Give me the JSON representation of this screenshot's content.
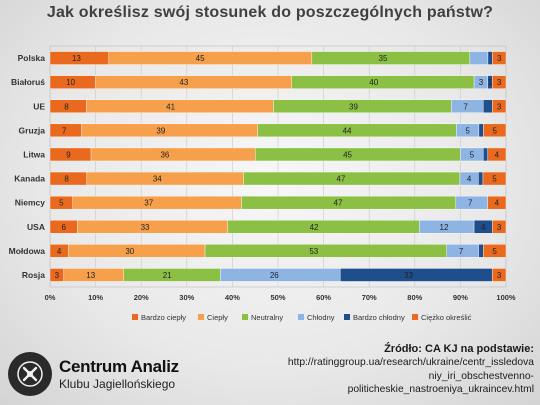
{
  "chart_data": {
    "type": "bar",
    "orientation": "horizontal",
    "stacked": "percent",
    "title": "Jak określisz swój stosunek do poszczególnych państw?",
    "categories": [
      "Polska",
      "Białoruś",
      "UE",
      "Gruzja",
      "Litwa",
      "Kanada",
      "Niemcy",
      "USA",
      "Mołdowa",
      "Rosja"
    ],
    "xticks": [
      "0%",
      "10%",
      "20%",
      "30%",
      "40%",
      "50%",
      "60%",
      "70%",
      "80%",
      "90%",
      "100%"
    ],
    "xlim": [
      0,
      100
    ],
    "legend_position": "bottom",
    "series": [
      {
        "name": "Bardzo ciepły",
        "color": "#e9691e",
        "values": [
          13,
          10,
          8,
          7,
          9,
          8,
          5,
          6,
          4,
          3
        ]
      },
      {
        "name": "Ciepły",
        "color": "#f7a04b",
        "values": [
          45,
          43,
          41,
          39,
          36,
          34,
          37,
          33,
          30,
          13
        ]
      },
      {
        "name": "Neutralny",
        "color": "#8cc044",
        "values": [
          35,
          40,
          39,
          44,
          45,
          47,
          47,
          42,
          53,
          21
        ]
      },
      {
        "name": "Chłodny",
        "color": "#8eb4e3",
        "values": [
          4,
          3,
          7,
          5,
          5,
          4,
          7,
          12,
          7,
          26
        ]
      },
      {
        "name": "Bardzo chłodny",
        "color": "#1f4e8c",
        "values": [
          1,
          1,
          2,
          1,
          1,
          1,
          0,
          4,
          1,
          33
        ]
      },
      {
        "name": "Ciężko określić",
        "color": "#e9691e",
        "values": [
          3,
          3,
          3,
          5,
          4,
          5,
          4,
          3,
          5,
          3
        ]
      }
    ],
    "data_labels": [
      [
        "13",
        "45",
        "35",
        "",
        "",
        "3"
      ],
      [
        "10",
        "43",
        "40",
        "3",
        "1",
        "3"
      ],
      [
        "8",
        "41",
        "39",
        "7",
        "",
        "3"
      ],
      [
        "7",
        "39",
        "44",
        "5",
        "",
        "5"
      ],
      [
        "9",
        "36",
        "45",
        "5",
        "",
        "4"
      ],
      [
        "8",
        "34",
        "47",
        "4",
        "",
        "5"
      ],
      [
        "5",
        "37",
        "47",
        "7",
        "",
        "4"
      ],
      [
        "6",
        "33",
        "42",
        "12",
        "4",
        "3"
      ],
      [
        "4",
        "30",
        "53",
        "7",
        "",
        "5"
      ],
      [
        "3",
        "13",
        "21",
        "26",
        "33",
        "3"
      ]
    ],
    "grid": true
  },
  "source": {
    "title": "Źródło: CA KJ na podstawie:",
    "url": "http://ratinggroup.ua/research/ukraine/centr_issledovaniy_iri_obschestvenno-politicheskie_nastroeniya_ukraincev.html",
    "url_lines": [
      "http://ratinggroup.ua/research/ukraine/centr_issledova",
      "niy_iri_obschestvenno-",
      "politicheskie_nastroeniya_ukraincev.html"
    ]
  },
  "logo": {
    "name": "Centrum Analiz",
    "subtitle": "Klubu Jagiellońskiego"
  }
}
